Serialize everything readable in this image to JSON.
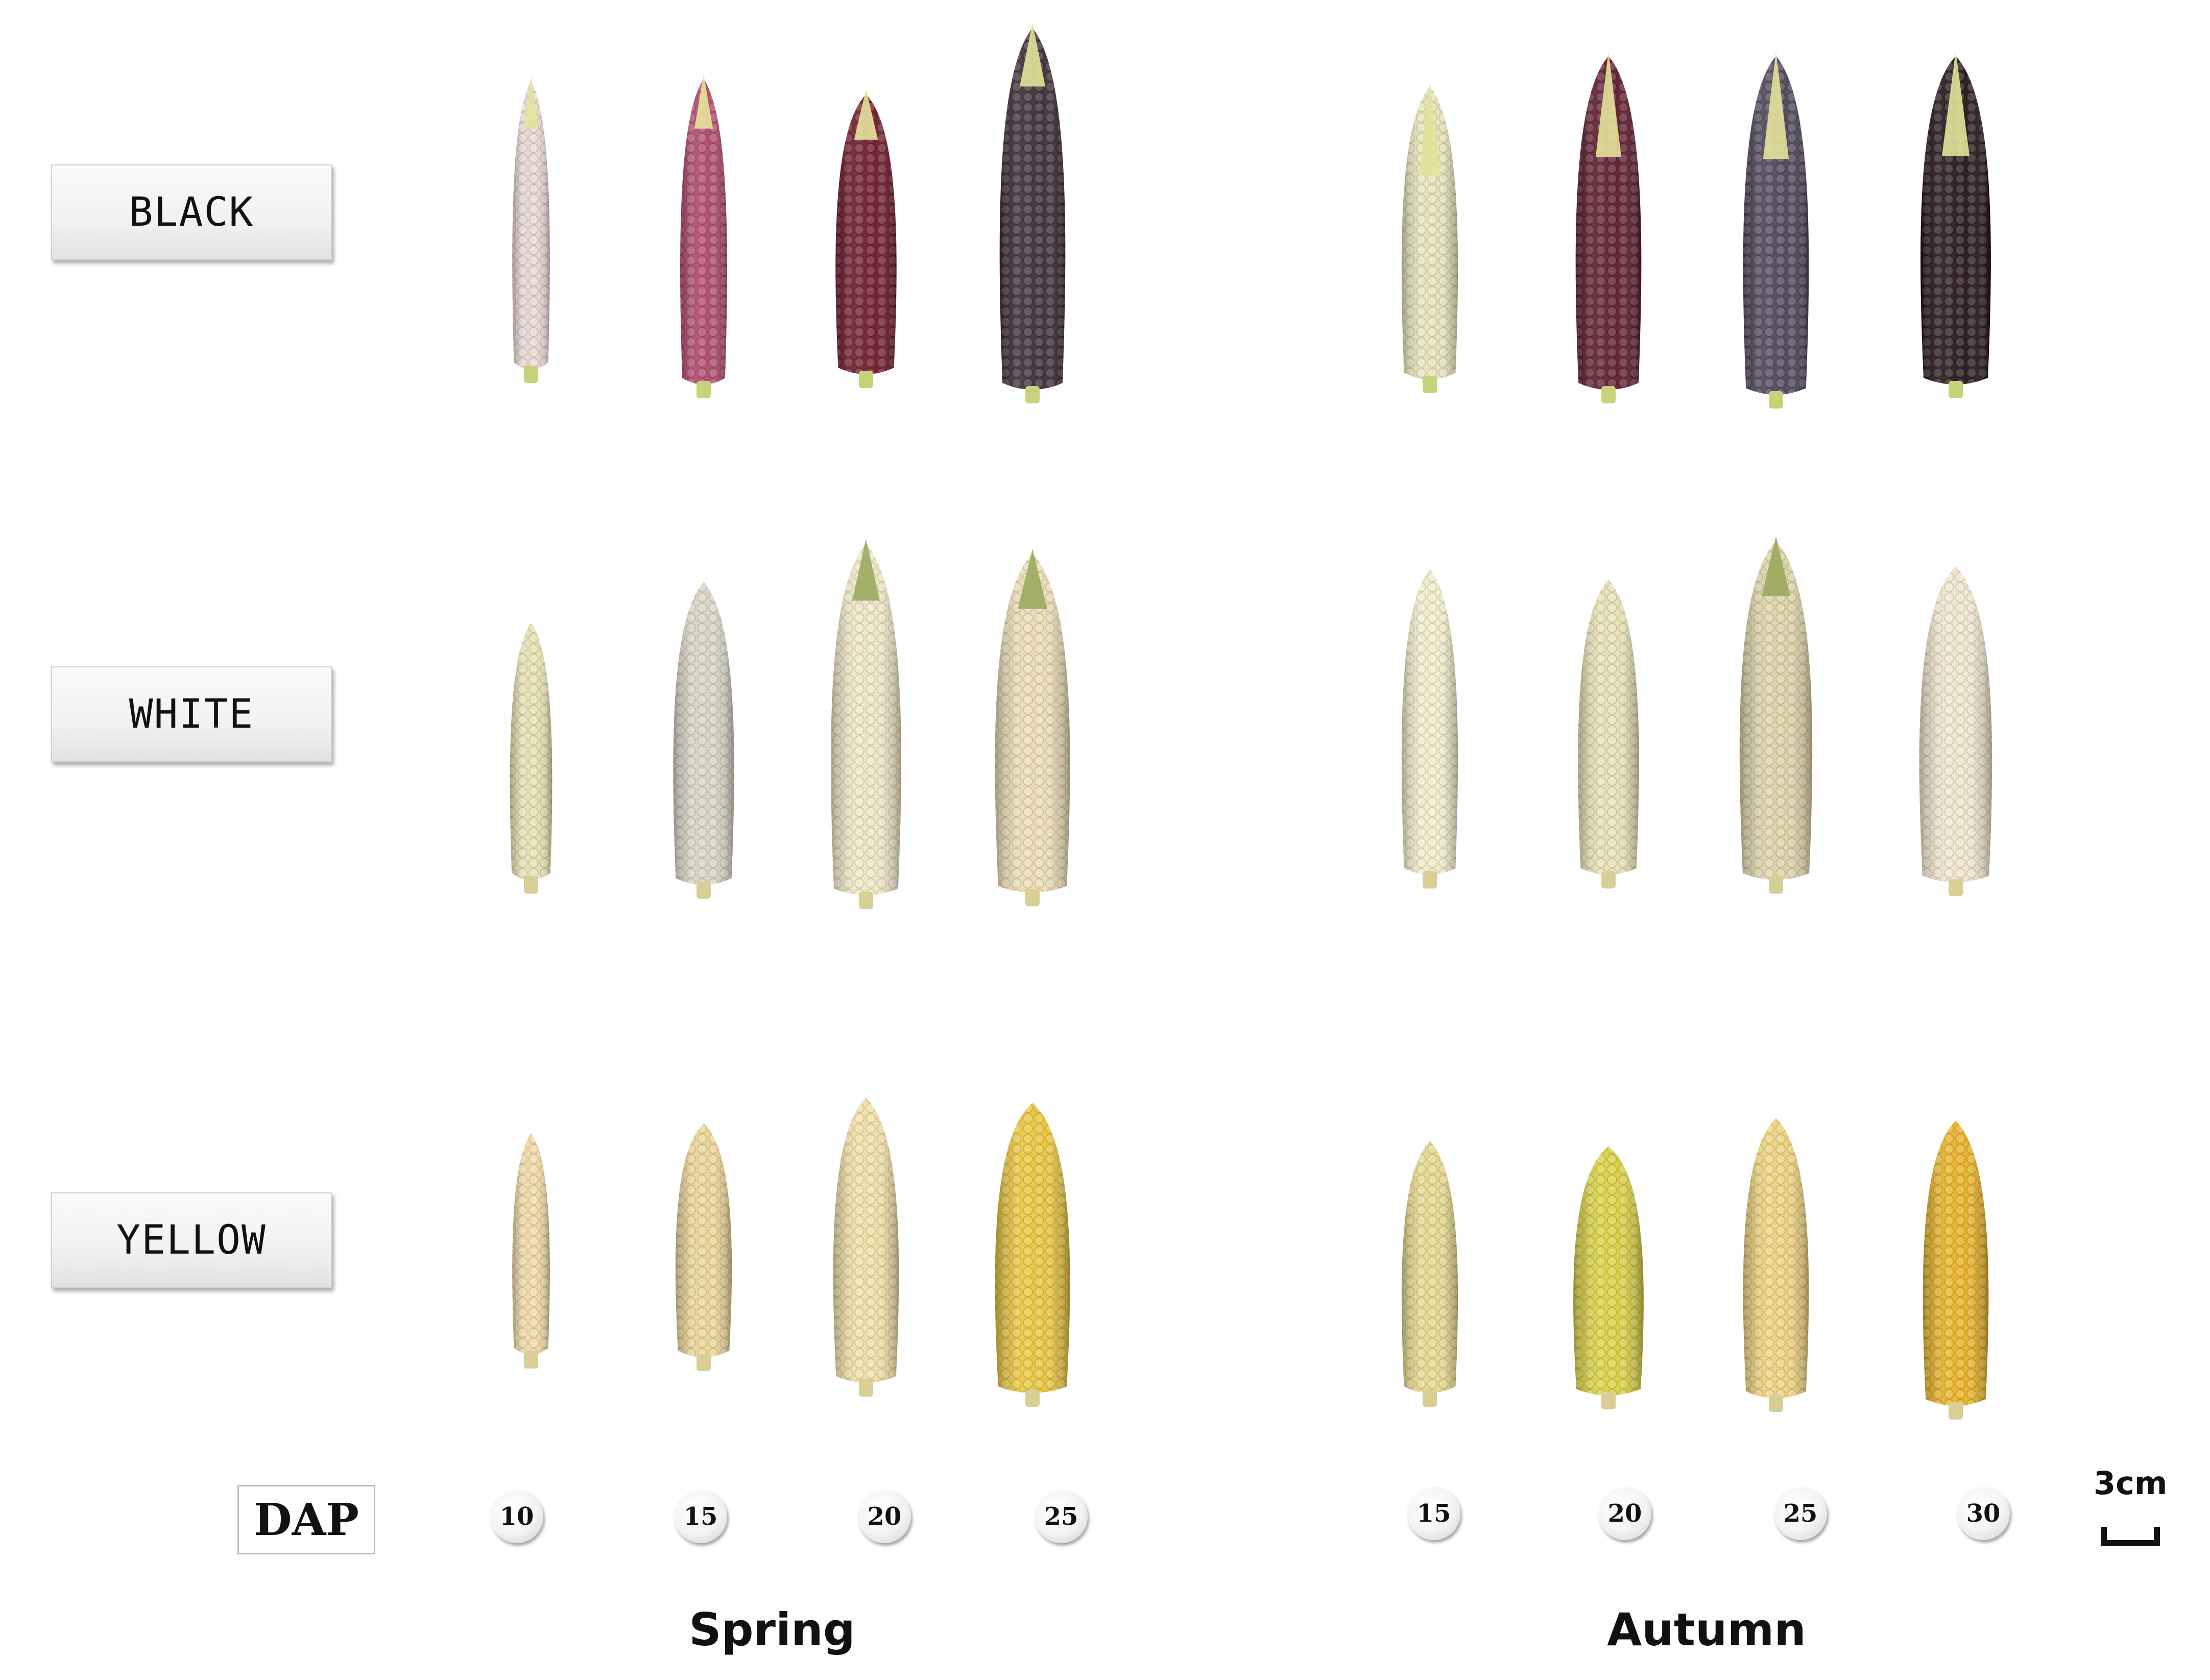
{
  "rows": [
    {
      "label": "BLACK"
    },
    {
      "label": "WHITE"
    },
    {
      "label": "YELLOW"
    }
  ],
  "dap": {
    "label": "DAP",
    "spring_values": [
      "10",
      "15",
      "20",
      "25"
    ],
    "autumn_values": [
      "15",
      "20",
      "25",
      "30"
    ]
  },
  "seasons": {
    "spring": "Spring",
    "autumn": "Autumn"
  },
  "scale_bar": {
    "label": "3cm"
  },
  "colors": {
    "black_row": [
      "#e8d6d2",
      "#b0476a",
      "#6e1828",
      "#3a2a34",
      "#e6e3b8",
      "#5e1a2c",
      "#4d4458",
      "#241418"
    ],
    "white_row": [
      "#e7e0b0",
      "#d8d4c2",
      "#efe6c4",
      "#ecdcb4",
      "#f1ecc8",
      "#e8e0b4",
      "#ddd2a6",
      "#f1e6cc"
    ],
    "yellow_row": [
      "#f0d9a4",
      "#ecd494",
      "#f1dfa4",
      "#e9c53a",
      "#e6d88a",
      "#d8d040",
      "#efd27a",
      "#e7b122"
    ]
  }
}
